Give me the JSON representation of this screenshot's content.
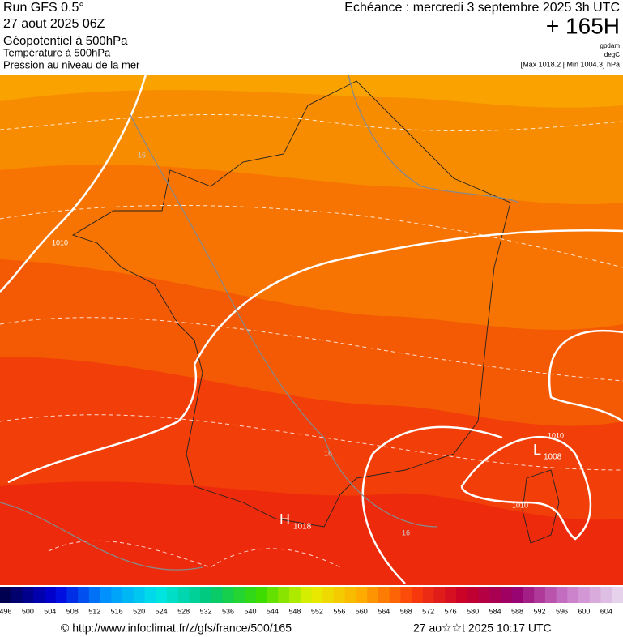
{
  "header": {
    "left": [
      "Run GFS 0.5°",
      "27 aout 2025 06Z",
      "Géopotentiel à 500hPa",
      "Température à 500hPa",
      "Pression au niveau de la mer"
    ],
    "echeance": "Echéance : mercredi 3 septembre 2025 3h UTC",
    "lead": "+ 165H",
    "units": [
      "gpdam",
      "degC"
    ],
    "range": "[Max 1018.2 | Min 1004.3] hPa"
  },
  "map": {
    "labels": [
      "1010",
      "1010",
      "1010",
      "16",
      "16",
      "16",
      "H",
      "1018",
      "L",
      "1008"
    ]
  },
  "colorbar": {
    "labels": [
      496,
      500,
      504,
      508,
      512,
      516,
      520,
      524,
      528,
      532,
      536,
      540,
      544,
      548,
      552,
      556,
      560,
      564,
      568,
      572,
      576,
      580,
      584,
      588,
      592,
      596,
      600,
      604
    ]
  },
  "footer": {
    "source": "© http://www.infoclimat.fr/z/gfs/france/500/165",
    "date": "27 ao☆☆t 2025 10:17 UTC"
  }
}
